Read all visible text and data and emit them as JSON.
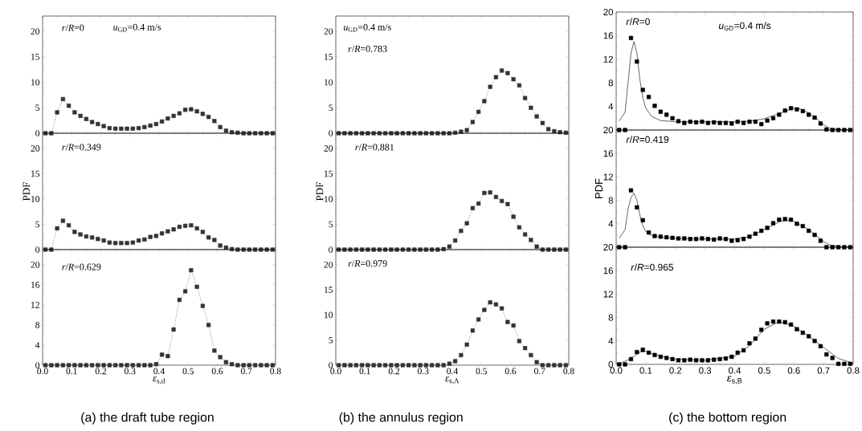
{
  "chart_data": [
    {
      "type": "line",
      "x": [
        0.01,
        0.03,
        0.05,
        0.07,
        0.09,
        0.11,
        0.13,
        0.15,
        0.17,
        0.19,
        0.21,
        0.23,
        0.25,
        0.27,
        0.29,
        0.31,
        0.33,
        0.35,
        0.37,
        0.39,
        0.41,
        0.43,
        0.45,
        0.47,
        0.49,
        0.51,
        0.53,
        0.55,
        0.57,
        0.59,
        0.61,
        0.63,
        0.65,
        0.67,
        0.69,
        0.71,
        0.73,
        0.75,
        0.77,
        0.79
      ],
      "series": [
        {
          "color": "#333333",
          "marker": "square",
          "line_style": "dotted",
          "values": [
            0,
            0,
            4.1,
            6.7,
            5.4,
            4.1,
            3.4,
            2.8,
            2.2,
            1.8,
            1.4,
            1.0,
            0.9,
            0.9,
            0.9,
            0.9,
            1.0,
            1.2,
            1.5,
            1.8,
            2.3,
            2.9,
            3.4,
            3.9,
            4.6,
            4.7,
            4.3,
            3.8,
            3.2,
            2.4,
            1.2,
            0.5,
            0.2,
            0.1,
            0,
            0,
            0,
            0,
            0,
            0
          ]
        }
      ],
      "xlim": [
        0,
        0.8
      ],
      "ylim": [
        0,
        23
      ],
      "xticks": [
        0,
        0.1,
        0.2,
        0.3,
        0.4,
        0.5,
        0.6,
        0.7,
        0.8
      ],
      "yticks": [
        0,
        5,
        10,
        15,
        20
      ],
      "tick_labels": "y",
      "annotations": [
        "*r*/*R*=0",
        "*u*$_{GD}$=0.4 m/s"
      ]
    },
    {
      "type": "line",
      "x": [
        0.01,
        0.03,
        0.05,
        0.07,
        0.09,
        0.11,
        0.13,
        0.15,
        0.17,
        0.19,
        0.21,
        0.23,
        0.25,
        0.27,
        0.29,
        0.31,
        0.33,
        0.35,
        0.37,
        0.39,
        0.41,
        0.43,
        0.45,
        0.47,
        0.49,
        0.51,
        0.53,
        0.55,
        0.57,
        0.59,
        0.61,
        0.63,
        0.65,
        0.67,
        0.69,
        0.71,
        0.73,
        0.75,
        0.77,
        0.79
      ],
      "series": [
        {
          "color": "#333333",
          "marker": "square",
          "line_style": "dotted",
          "values": [
            0,
            0,
            4.2,
            5.7,
            4.8,
            3.5,
            3.0,
            2.6,
            2.4,
            2.1,
            1.8,
            1.4,
            1.3,
            1.3,
            1.3,
            1.4,
            1.8,
            2.0,
            2.5,
            2.7,
            3.2,
            3.6,
            4.0,
            4.5,
            4.7,
            4.8,
            4.2,
            3.5,
            2.4,
            1.9,
            0.8,
            0.4,
            0.1,
            0,
            0,
            0,
            0,
            0,
            0,
            0
          ]
        }
      ],
      "xlim": [
        0,
        0.8
      ],
      "ylim": [
        0,
        23
      ],
      "ylabel": "PDF",
      "xticks": [
        0,
        0.1,
        0.2,
        0.3,
        0.4,
        0.5,
        0.6,
        0.7,
        0.8
      ],
      "yticks": [
        0,
        5,
        10,
        15,
        20
      ],
      "tick_labels": "y",
      "annotations": [
        "*r*/*R*=0.349"
      ]
    },
    {
      "type": "line",
      "x": [
        0.01,
        0.03,
        0.05,
        0.07,
        0.09,
        0.11,
        0.13,
        0.15,
        0.17,
        0.19,
        0.21,
        0.23,
        0.25,
        0.27,
        0.29,
        0.31,
        0.33,
        0.35,
        0.37,
        0.39,
        0.41,
        0.43,
        0.45,
        0.47,
        0.49,
        0.51,
        0.53,
        0.55,
        0.57,
        0.59,
        0.61,
        0.63,
        0.65,
        0.67,
        0.69,
        0.71,
        0.73,
        0.75,
        0.77,
        0.79
      ],
      "series": [
        {
          "color": "#333333",
          "marker": "square",
          "line_style": "dotted",
          "values": [
            0,
            0,
            0,
            0,
            0,
            0,
            0,
            0,
            0,
            0,
            0,
            0,
            0,
            0,
            0,
            0,
            0,
            0,
            0,
            0.2,
            2.1,
            1.8,
            7.1,
            13.0,
            14.7,
            18.9,
            15.6,
            11.8,
            8.0,
            2.9,
            1.6,
            0.6,
            0.2,
            0,
            0,
            0,
            0,
            0,
            0,
            0
          ]
        }
      ],
      "xlim": [
        0,
        0.8
      ],
      "ylim": [
        0,
        23
      ],
      "xlabel": "*ε*$_{s,d}$",
      "xticks": [
        {
          "value": 0,
          "label": "0.0"
        },
        {
          "value": 0.1,
          "label": "0.1"
        },
        {
          "value": 0.2,
          "label": "0.2"
        },
        {
          "value": 0.3,
          "label": "0.3"
        },
        {
          "value": 0.4,
          "label": "0.4"
        },
        {
          "value": 0.5,
          "label": "0.5"
        },
        {
          "value": 0.6,
          "label": "0.6"
        },
        {
          "value": 0.7,
          "label": "0.7"
        },
        {
          "value": 0.8,
          "label": "0.8"
        }
      ],
      "yticks": [
        0,
        4,
        8,
        12,
        16,
        20
      ],
      "annotations": [
        "*r*/*R*=0.629",
        "(a) the draft tube region"
      ]
    },
    {
      "type": "line",
      "x": [
        0.01,
        0.03,
        0.05,
        0.07,
        0.09,
        0.11,
        0.13,
        0.15,
        0.17,
        0.19,
        0.21,
        0.23,
        0.25,
        0.27,
        0.29,
        0.31,
        0.33,
        0.35,
        0.37,
        0.39,
        0.41,
        0.43,
        0.45,
        0.47,
        0.49,
        0.51,
        0.53,
        0.55,
        0.57,
        0.59,
        0.61,
        0.63,
        0.65,
        0.67,
        0.69,
        0.71,
        0.73,
        0.75,
        0.77,
        0.79
      ],
      "series": [
        {
          "color": "#333333",
          "marker": "square",
          "line_style": "dotted",
          "values": [
            0,
            0,
            0,
            0,
            0,
            0,
            0,
            0,
            0,
            0,
            0,
            0,
            0,
            0,
            0,
            0,
            0,
            0,
            0,
            0,
            0.1,
            0.3,
            0.6,
            2.2,
            4.2,
            6.3,
            9.1,
            11.0,
            12.3,
            11.8,
            10.6,
            9.4,
            6.9,
            5.0,
            3.3,
            2.0,
            0.8,
            0.4,
            0.2,
            0.1
          ]
        }
      ],
      "xlim": [
        0,
        0.8
      ],
      "ylim": [
        0,
        23
      ],
      "xticks": [
        0,
        0.1,
        0.2,
        0.3,
        0.4,
        0.5,
        0.6,
        0.7,
        0.8
      ],
      "yticks": [
        0,
        5,
        10,
        15,
        20
      ],
      "tick_labels": "y",
      "annotations": [
        "*u*$_{GD}$=0.4 m/s",
        "*r*/*R*=0.783"
      ]
    },
    {
      "type": "line",
      "x": [
        0.01,
        0.03,
        0.05,
        0.07,
        0.09,
        0.11,
        0.13,
        0.15,
        0.17,
        0.19,
        0.21,
        0.23,
        0.25,
        0.27,
        0.29,
        0.31,
        0.33,
        0.35,
        0.37,
        0.39,
        0.41,
        0.43,
        0.45,
        0.47,
        0.49,
        0.51,
        0.53,
        0.55,
        0.57,
        0.59,
        0.61,
        0.63,
        0.65,
        0.67,
        0.69,
        0.71,
        0.73,
        0.75,
        0.77,
        0.79
      ],
      "series": [
        {
          "color": "#333333",
          "marker": "square",
          "line_style": "dotted",
          "values": [
            0,
            0,
            0,
            0,
            0,
            0,
            0,
            0,
            0,
            0,
            0,
            0,
            0,
            0,
            0,
            0,
            0,
            0,
            0.1,
            0.6,
            1.8,
            3.7,
            5.2,
            8.2,
            9.1,
            11.2,
            11.3,
            10.4,
            9.6,
            9.0,
            6.5,
            4.4,
            3.0,
            1.9,
            0.6,
            0,
            0,
            0,
            0,
            0
          ]
        }
      ],
      "xlim": [
        0,
        0.8
      ],
      "ylim": [
        0,
        23
      ],
      "ylabel": "PDF",
      "xticks": [
        0,
        0.1,
        0.2,
        0.3,
        0.4,
        0.5,
        0.6,
        0.7,
        0.8
      ],
      "yticks": [
        0,
        5,
        10,
        15,
        20
      ],
      "tick_labels": "y",
      "annotations": [
        "*r*/*R*=0.881"
      ]
    },
    {
      "type": "line",
      "x": [
        0.01,
        0.03,
        0.05,
        0.07,
        0.09,
        0.11,
        0.13,
        0.15,
        0.17,
        0.19,
        0.21,
        0.23,
        0.25,
        0.27,
        0.29,
        0.31,
        0.33,
        0.35,
        0.37,
        0.39,
        0.41,
        0.43,
        0.45,
        0.47,
        0.49,
        0.51,
        0.53,
        0.55,
        0.57,
        0.59,
        0.61,
        0.63,
        0.65,
        0.67,
        0.69,
        0.71,
        0.73,
        0.75,
        0.77,
        0.79
      ],
      "series": [
        {
          "color": "#333333",
          "marker": "square",
          "line_style": "dotted",
          "values": [
            0,
            0,
            0,
            0,
            0,
            0,
            0,
            0,
            0,
            0,
            0,
            0,
            0,
            0,
            0,
            0,
            0,
            0,
            0,
            0.3,
            0.8,
            2.0,
            4.1,
            6.9,
            9.1,
            11.0,
            12.5,
            12.1,
            11.3,
            8.6,
            7.9,
            4.8,
            3.4,
            2.0,
            0.6,
            0,
            0,
            0,
            0,
            0
          ]
        }
      ],
      "xlim": [
        0,
        0.8
      ],
      "ylim": [
        0,
        23
      ],
      "xlabel": "*ε*$_{s,A}$",
      "xticks": [
        {
          "value": 0,
          "label": "0.0"
        },
        {
          "value": 0.1,
          "label": "0.1"
        },
        {
          "value": 0.2,
          "label": "0.2"
        },
        {
          "value": 0.3,
          "label": "0.3"
        },
        {
          "value": 0.4,
          "label": "0.4"
        },
        {
          "value": 0.5,
          "label": "0.5"
        },
        {
          "value": 0.6,
          "label": "0.6"
        },
        {
          "value": 0.7,
          "label": "0.7"
        },
        {
          "value": 0.8,
          "label": "0.8"
        }
      ],
      "yticks": [
        0,
        5,
        10,
        15,
        20
      ],
      "annotations": [
        "*r*/*R*=0.979",
        "(b) the annulus region"
      ]
    },
    {
      "type": "scatter",
      "x": [
        0.01,
        0.03,
        0.05,
        0.07,
        0.09,
        0.11,
        0.13,
        0.15,
        0.17,
        0.19,
        0.21,
        0.23,
        0.25,
        0.27,
        0.29,
        0.31,
        0.33,
        0.35,
        0.37,
        0.39,
        0.41,
        0.43,
        0.45,
        0.47,
        0.49,
        0.51,
        0.53,
        0.55,
        0.57,
        0.59,
        0.61,
        0.63,
        0.65,
        0.67,
        0.69,
        0.71,
        0.73,
        0.75,
        0.77,
        0.79
      ],
      "series": [
        {
          "color": "#000000",
          "marker": "square",
          "values": [
            0,
            0,
            15.6,
            11.6,
            6.8,
            5.6,
            4.1,
            3.1,
            2.6,
            2.0,
            1.5,
            1.2,
            1.4,
            1.3,
            1.4,
            1.2,
            1.3,
            1.2,
            1.2,
            1.1,
            1.4,
            1.2,
            1.4,
            1.4,
            1.0,
            1.6,
            2.0,
            2.6,
            3.3,
            3.7,
            3.5,
            3.2,
            2.6,
            2.1,
            1.1,
            0.1,
            0,
            0,
            0,
            0
          ]
        },
        {
          "type": "line",
          "color": "#000000",
          "marker": "none",
          "line_style": "solid",
          "x": [
            0.01,
            0.03,
            0.04,
            0.05,
            0.06,
            0.07,
            0.08,
            0.09,
            0.1,
            0.12,
            0.15,
            0.2,
            0.3,
            0.4,
            0.45,
            0.5,
            0.55,
            0.6,
            0.62,
            0.65,
            0.68,
            0.7,
            0.72,
            0.75,
            0.8
          ],
          "values": [
            1.5,
            3,
            8,
            13,
            15,
            13,
            8.5,
            5.5,
            3.7,
            2.3,
            1.6,
            1.4,
            1.4,
            1.4,
            1.5,
            1.9,
            2.8,
            3.7,
            3.6,
            2.9,
            1.8,
            0.9,
            0.3,
            0.1,
            0
          ]
        }
      ],
      "xlim": [
        0,
        0.8
      ],
      "ylim": [
        0,
        20
      ],
      "xticks": [
        0,
        0.1,
        0.2,
        0.3,
        0.4,
        0.5,
        0.6,
        0.7,
        0.8
      ],
      "yticks": [
        {
          "value": 0,
          "label": null
        },
        4,
        8,
        12,
        16,
        20
      ],
      "tick_labels": "y",
      "annotations": [
        "*r*/*R*=0",
        "*u*$_{GD}$=0.4 m/s"
      ]
    },
    {
      "type": "scatter",
      "x": [
        0.01,
        0.03,
        0.05,
        0.07,
        0.09,
        0.11,
        0.13,
        0.15,
        0.17,
        0.19,
        0.21,
        0.23,
        0.25,
        0.27,
        0.29,
        0.31,
        0.33,
        0.35,
        0.37,
        0.39,
        0.41,
        0.43,
        0.45,
        0.47,
        0.49,
        0.51,
        0.53,
        0.55,
        0.57,
        0.59,
        0.61,
        0.63,
        0.65,
        0.67,
        0.69,
        0.71,
        0.73,
        0.75,
        0.77,
        0.79
      ],
      "series": [
        {
          "color": "#000000",
          "marker": "square",
          "values": [
            0,
            0,
            9.7,
            6.8,
            4.6,
            2.5,
            1.9,
            1.8,
            1.7,
            1.6,
            1.5,
            1.5,
            1.4,
            1.4,
            1.5,
            1.4,
            1.3,
            1.5,
            1.4,
            1.1,
            1.2,
            1.4,
            1.8,
            2.3,
            2.8,
            3.3,
            4.1,
            4.7,
            4.8,
            4.7,
            4.0,
            3.6,
            2.8,
            2.1,
            1.1,
            0,
            0,
            0,
            0,
            0
          ]
        },
        {
          "type": "line",
          "color": "#000000",
          "marker": "none",
          "line_style": "solid",
          "x": [
            0.01,
            0.03,
            0.04,
            0.05,
            0.06,
            0.07,
            0.08,
            0.09,
            0.1,
            0.12,
            0.15,
            0.2,
            0.3,
            0.4,
            0.45,
            0.5,
            0.55,
            0.57,
            0.6,
            0.65,
            0.68,
            0.7,
            0.72,
            0.75,
            0.8
          ],
          "values": [
            1.5,
            3,
            6.5,
            8.5,
            9.2,
            8,
            5.5,
            3.7,
            2.7,
            2.0,
            1.7,
            1.5,
            1.4,
            1.4,
            1.8,
            3.0,
            4.3,
            4.6,
            4.4,
            3.0,
            1.8,
            1.0,
            0.4,
            0.1,
            0
          ]
        }
      ],
      "xlim": [
        0,
        0.8
      ],
      "ylim": [
        0,
        20
      ],
      "ylabel": "PDF",
      "xticks": [
        0,
        0.1,
        0.2,
        0.3,
        0.4,
        0.5,
        0.6,
        0.7,
        0.8
      ],
      "yticks": [
        {
          "value": 0,
          "label": null
        },
        4,
        8,
        12,
        16,
        20
      ],
      "tick_labels": "y",
      "annotations": [
        "*r*/*R*=0.419"
      ]
    },
    {
      "type": "scatter",
      "x": [
        0.01,
        0.03,
        0.05,
        0.07,
        0.09,
        0.11,
        0.13,
        0.15,
        0.17,
        0.19,
        0.21,
        0.23,
        0.25,
        0.27,
        0.29,
        0.31,
        0.33,
        0.35,
        0.37,
        0.39,
        0.41,
        0.43,
        0.45,
        0.47,
        0.49,
        0.51,
        0.53,
        0.55,
        0.57,
        0.59,
        0.61,
        0.63,
        0.65,
        0.67,
        0.69,
        0.71,
        0.73,
        0.75,
        0.77,
        0.79
      ],
      "series": [
        {
          "color": "#000000",
          "marker": "square",
          "values": [
            0,
            0,
            0.9,
            2.1,
            2.5,
            2.0,
            1.6,
            1.3,
            1.1,
            0.9,
            0.7,
            0.7,
            0.8,
            0.7,
            0.7,
            0.7,
            0.8,
            0.9,
            1.0,
            1.3,
            2.0,
            2.4,
            3.6,
            4.4,
            5.9,
            7.0,
            7.3,
            7.3,
            7.2,
            6.8,
            6.0,
            5.4,
            4.8,
            4.0,
            3.1,
            1.7,
            1.1,
            0.1,
            0.1,
            0.1
          ]
        },
        {
          "type": "line",
          "color": "#000000",
          "marker": "none",
          "line_style": "solid",
          "x": [
            0.01,
            0.05,
            0.08,
            0.1,
            0.15,
            0.2,
            0.3,
            0.4,
            0.45,
            0.5,
            0.55,
            0.6,
            0.65,
            0.7,
            0.75,
            0.8
          ],
          "values": [
            0.1,
            1.0,
            2.1,
            2.2,
            1.4,
            0.9,
            0.7,
            1.4,
            3.2,
            6.0,
            7.3,
            6.5,
            4.8,
            2.9,
            1.0,
            0.2
          ]
        }
      ],
      "xlim": [
        0,
        0.8
      ],
      "ylim": [
        0,
        20
      ],
      "xlabel": "*ε*$_{s,B}$",
      "xticks": [
        {
          "value": 0,
          "label": "0.0"
        },
        {
          "value": 0.1,
          "label": "0.1"
        },
        {
          "value": 0.2,
          "label": "0.2"
        },
        {
          "value": 0.3,
          "label": "0.3"
        },
        {
          "value": 0.4,
          "label": "0.4"
        },
        {
          "value": 0.5,
          "label": "0.5"
        },
        {
          "value": 0.6,
          "label": "0.6"
        },
        {
          "value": 0.7,
          "label": "0.7"
        },
        {
          "value": 0.8,
          "label": "0.8"
        }
      ],
      "yticks": [
        0,
        4,
        8,
        12,
        16,
        20
      ],
      "annotations": [
        "*r*/*R*=0.965",
        "(c) the bottom region"
      ]
    }
  ]
}
